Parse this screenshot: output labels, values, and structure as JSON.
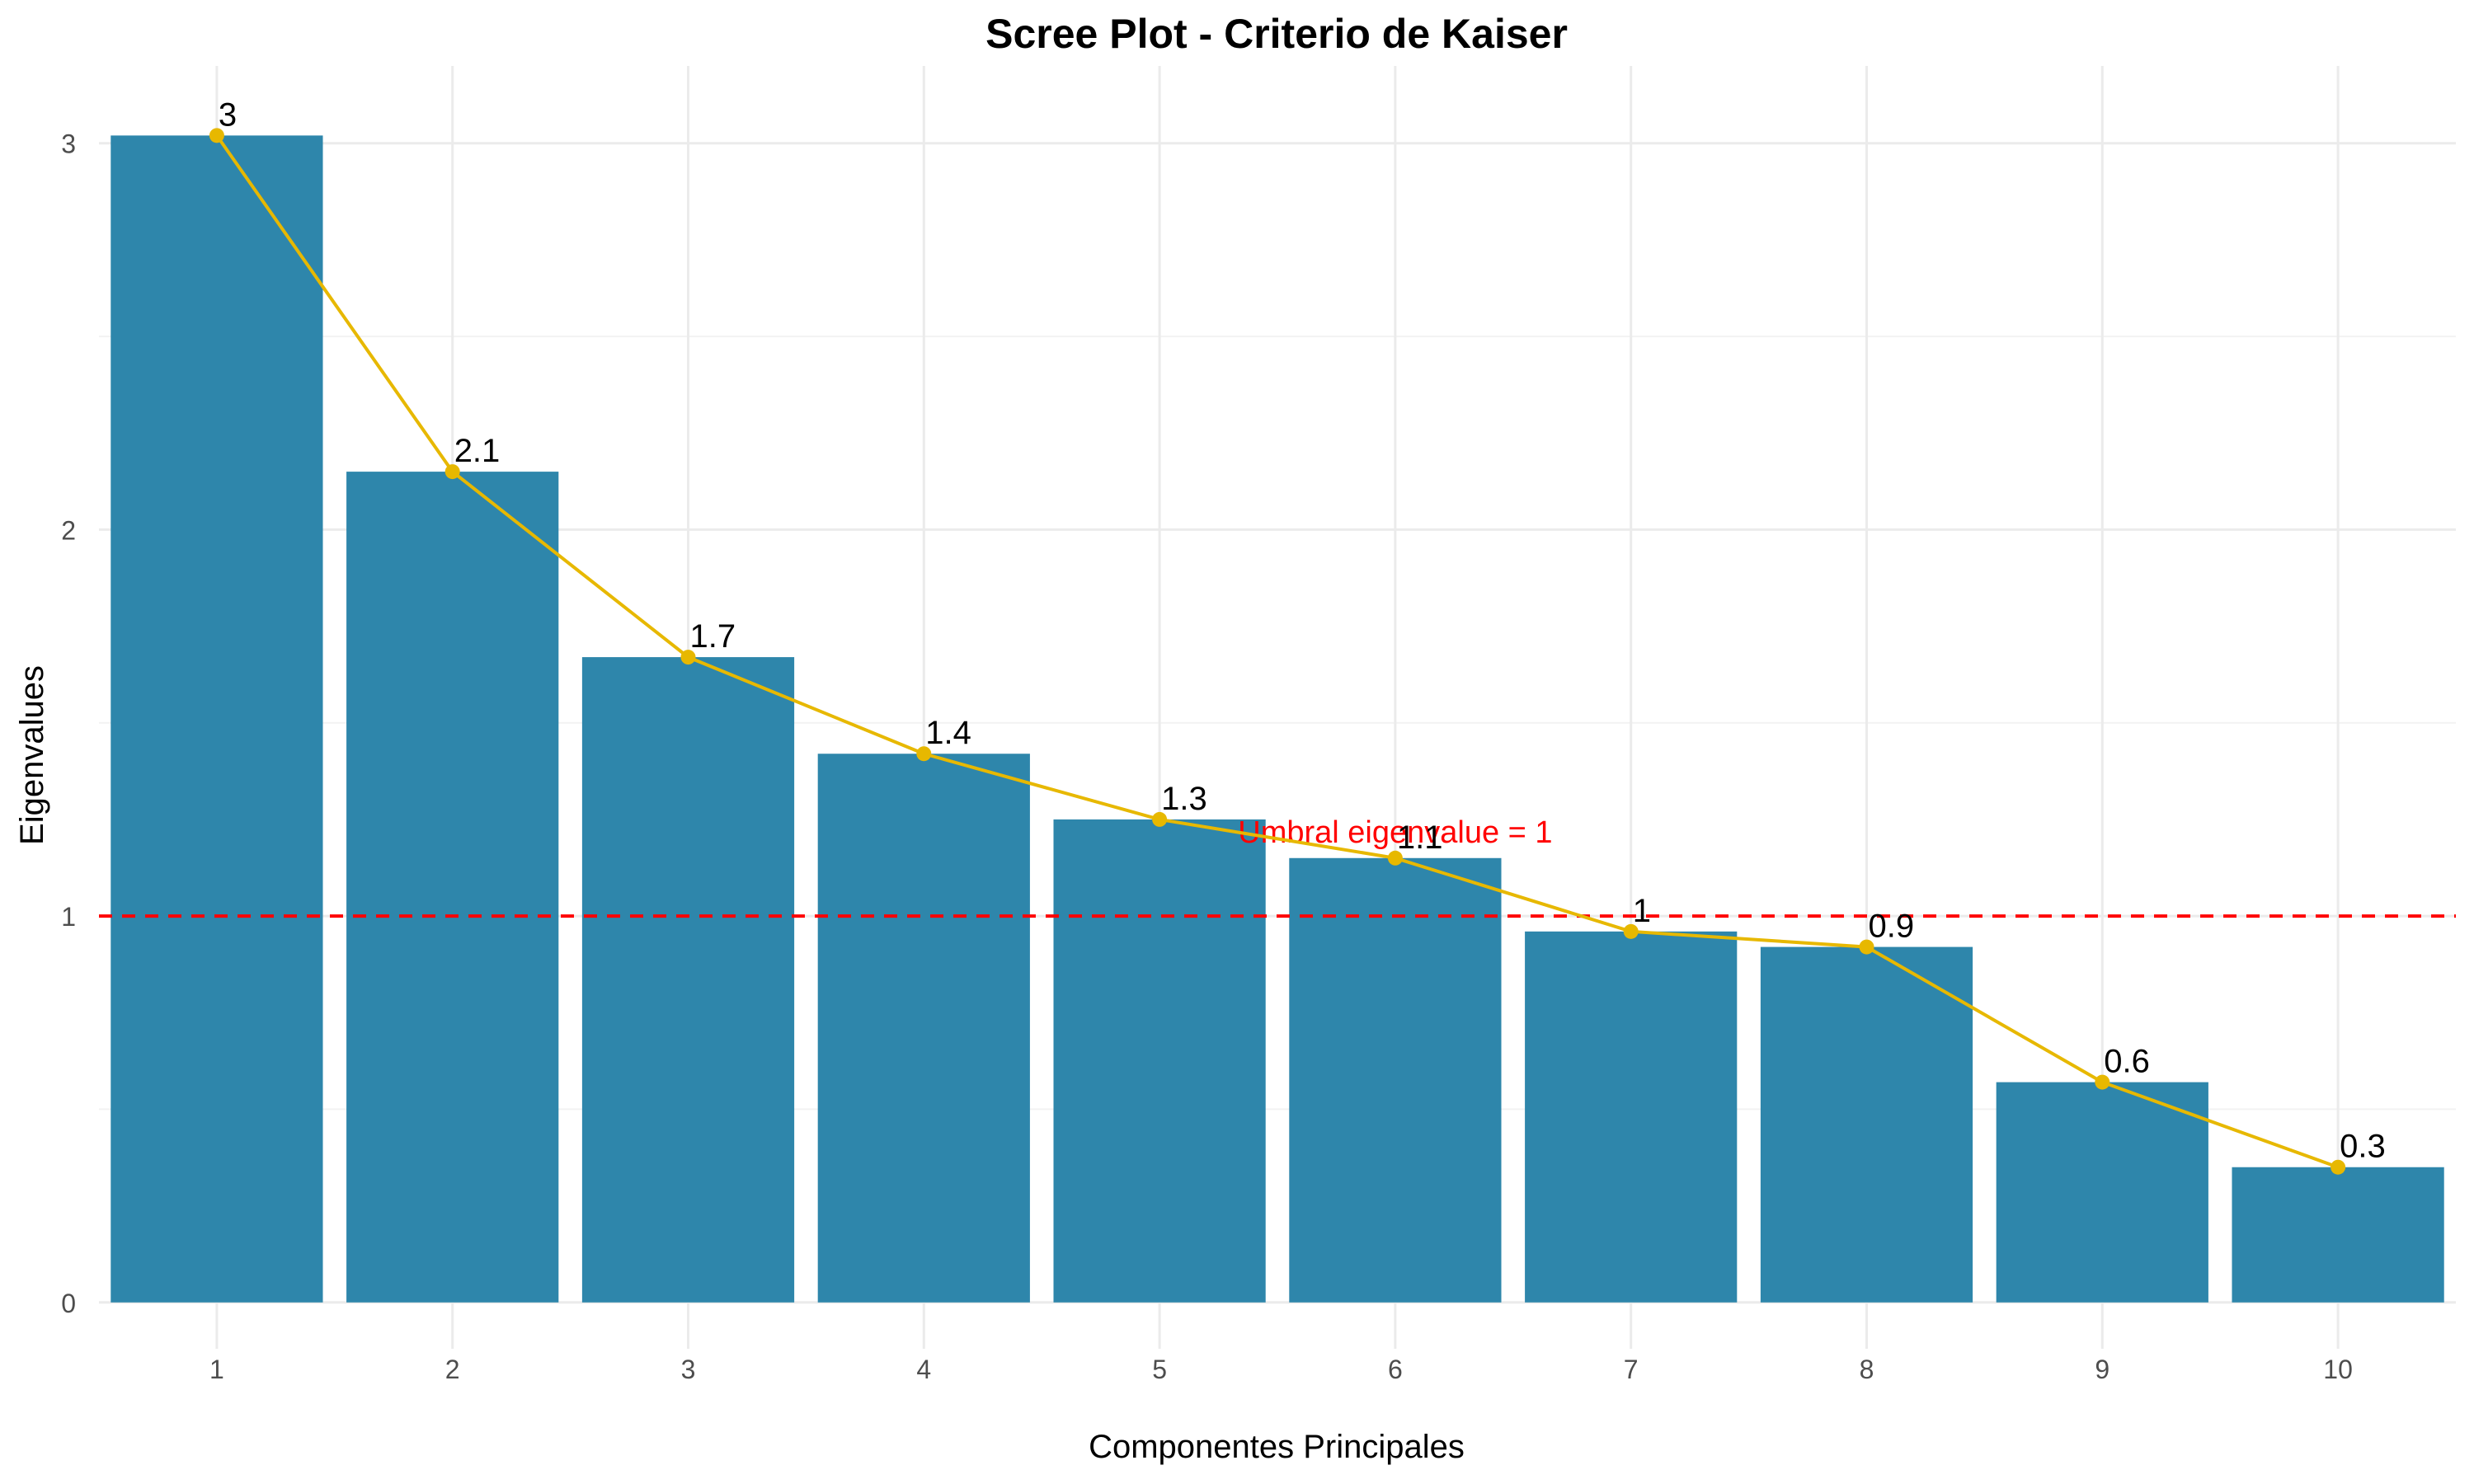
{
  "chart_data": {
    "type": "bar",
    "title": "Scree Plot - Criterio de Kaiser",
    "xlabel": "Componentes Principales",
    "ylabel": "Eigenvalues",
    "categories": [
      "1",
      "2",
      "3",
      "4",
      "5",
      "6",
      "7",
      "8",
      "9",
      "10"
    ],
    "values": [
      3.02,
      2.15,
      1.67,
      1.42,
      1.25,
      1.15,
      0.96,
      0.92,
      0.57,
      0.35
    ],
    "data_labels": [
      "3",
      "2.1",
      "1.7",
      "1.4",
      "1.3",
      "1.1",
      "1",
      "0.9",
      "0.6",
      "0.3"
    ],
    "y_ticks": [
      0,
      1,
      2,
      3
    ],
    "ylim": [
      -0.12,
      3.2
    ],
    "grid": true,
    "overlay_line": {
      "color": "#E7B800",
      "values_from": "values"
    },
    "threshold": {
      "value": 1,
      "label": "Umbral eigenvalue = 1",
      "color": "#FF0000",
      "label_at_x": 6
    },
    "bar_color": "#2E86AB"
  }
}
